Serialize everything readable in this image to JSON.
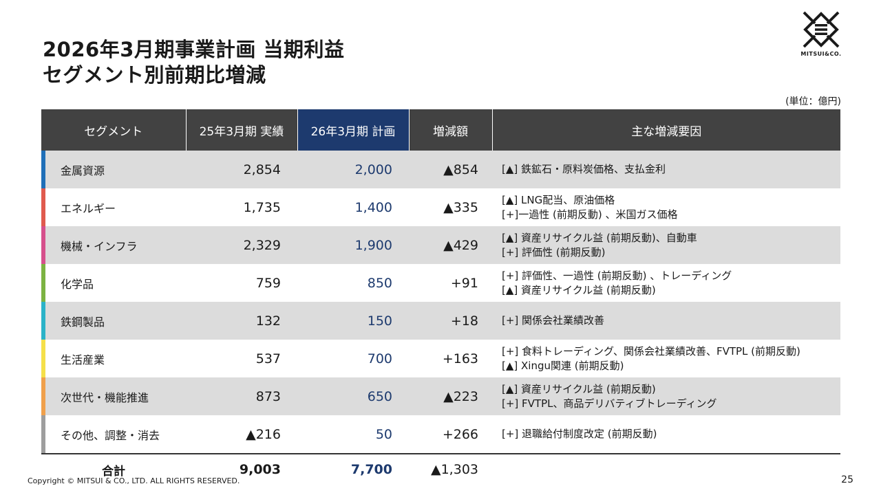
{
  "title": {
    "line1": "2026年3月期事業計画 当期利益",
    "line2": "セグメント別前期比増減"
  },
  "logo": {
    "text": "MITSUI&CO."
  },
  "unit": "(単位：億円)",
  "table": {
    "headers": {
      "segment": "セグメント",
      "actual": "25年3月期 実績",
      "plan": "26年3月期 計画",
      "change": "増減額",
      "factors": "主な増減要因"
    },
    "rows": [
      {
        "segment": "金属資源",
        "actual": "2,854",
        "plan": "2,000",
        "change": "▲854",
        "color": "#1f6fb8",
        "factors": [
          "[▲] 鉄鉱石・原料炭価格、支払金利"
        ]
      },
      {
        "segment": "エネルギー",
        "actual": "1,735",
        "plan": "1,400",
        "change": "▲335",
        "color": "#e05a4e",
        "factors": [
          "[▲] LNG配当、原油価格",
          "[+]一過性 (前期反動) 、米国ガス価格"
        ]
      },
      {
        "segment": "機械・インフラ",
        "actual": "2,329",
        "plan": "1,900",
        "change": "▲429",
        "color": "#d6508c",
        "factors": [
          "[▲] 資産リサイクル益 (前期反動)、自動車",
          "[+] 評価性 (前期反動)"
        ]
      },
      {
        "segment": "化学品",
        "actual": "759",
        "plan": "850",
        "change": "+91",
        "color": "#7cb342",
        "factors": [
          "[+] 評価性、一過性 (前期反動) 、トレーディング",
          "[▲] 資産リサイクル益 (前期反動)"
        ]
      },
      {
        "segment": "鉄鋼製品",
        "actual": "132",
        "plan": "150",
        "change": "+18",
        "color": "#2bb3c8",
        "factors": [
          "[+] 関係会社業績改善"
        ]
      },
      {
        "segment": "生活産業",
        "actual": "537",
        "plan": "700",
        "change": "+163",
        "color": "#f5e04a",
        "factors": [
          "[+] 食料トレーディング、関係会社業績改善、FVTPL (前期反動)",
          "[▲] Xingu関連 (前期反動)"
        ]
      },
      {
        "segment": "次世代・機能推進",
        "actual": "873",
        "plan": "650",
        "change": "▲223",
        "color": "#f0a04b",
        "factors": [
          "[▲] 資産リサイクル益 (前期反動)",
          "[+] FVTPL、商品デリバティブトレーディング"
        ]
      },
      {
        "segment": "その他、調整・消去",
        "actual": "▲216",
        "plan": "50",
        "change": "+266",
        "color": "#9e9e9e",
        "factors": [
          "[+] 退職給付制度改定 (前期反動)"
        ]
      }
    ],
    "total": {
      "label": "合計",
      "actual": "9,003",
      "plan": "7,700",
      "change": "▲1,303"
    }
  },
  "footer": {
    "copyright": "Copyright © MITSUI & CO., LTD. ALL RIGHTS RESERVED.",
    "page": "25"
  }
}
